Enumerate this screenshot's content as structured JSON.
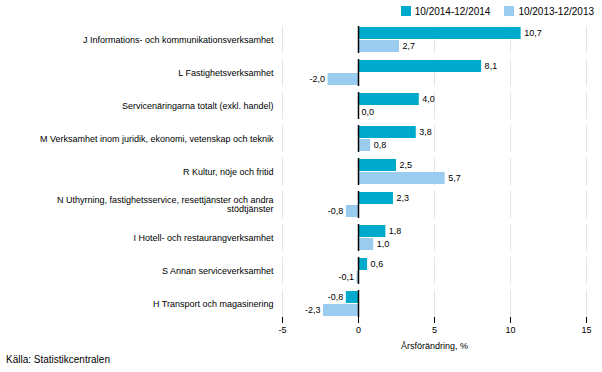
{
  "chart_data": {
    "type": "bar",
    "orientation": "horizontal",
    "categories": [
      "J Informations- och kommunikationsverksamhet",
      "L Fastighetsverksamhet",
      "Servicenäringarna totalt (exkl. handel)",
      "M Verksamhet inom juridik, ekonomi, vetenskap och teknik",
      "R Kultur, nöje och fritid",
      "N Uthyrning, fastighetsservice, resettjänster och andra\nstödtjänster",
      "I Hotell- och restaurangverksamhet",
      "S Annan serviceverksamhet",
      "H Transport och magasinering"
    ],
    "series": [
      {
        "name": "10/2014-12/2014",
        "color": "#00aacc",
        "values": [
          10.7,
          8.1,
          4.0,
          3.8,
          2.5,
          2.3,
          1.8,
          0.6,
          -0.8
        ],
        "value_labels": [
          "10,7",
          "8,1",
          "4,0",
          "3,8",
          "2,5",
          "2,3",
          "1,8",
          "0,6",
          "-0,8"
        ]
      },
      {
        "name": "10/2013-12/2013",
        "color": "#99ccee",
        "values": [
          2.7,
          -2.0,
          0.0,
          0.8,
          5.7,
          -0.8,
          1.0,
          -0.1,
          -2.3
        ],
        "value_labels": [
          "2,7",
          "-2,0",
          "0,0",
          "0,8",
          "5,7",
          "-0,8",
          "1,0",
          "-0,1",
          "-2,3"
        ]
      }
    ],
    "xlabel": "Årsförändring, %",
    "xlim": [
      -5,
      15
    ],
    "xticks": [
      -5,
      0,
      5,
      10,
      15
    ],
    "grid": true,
    "legend": "right",
    "data_labels": true,
    "annotations": [
      "Källa:  Statistikcentralen"
    ]
  }
}
